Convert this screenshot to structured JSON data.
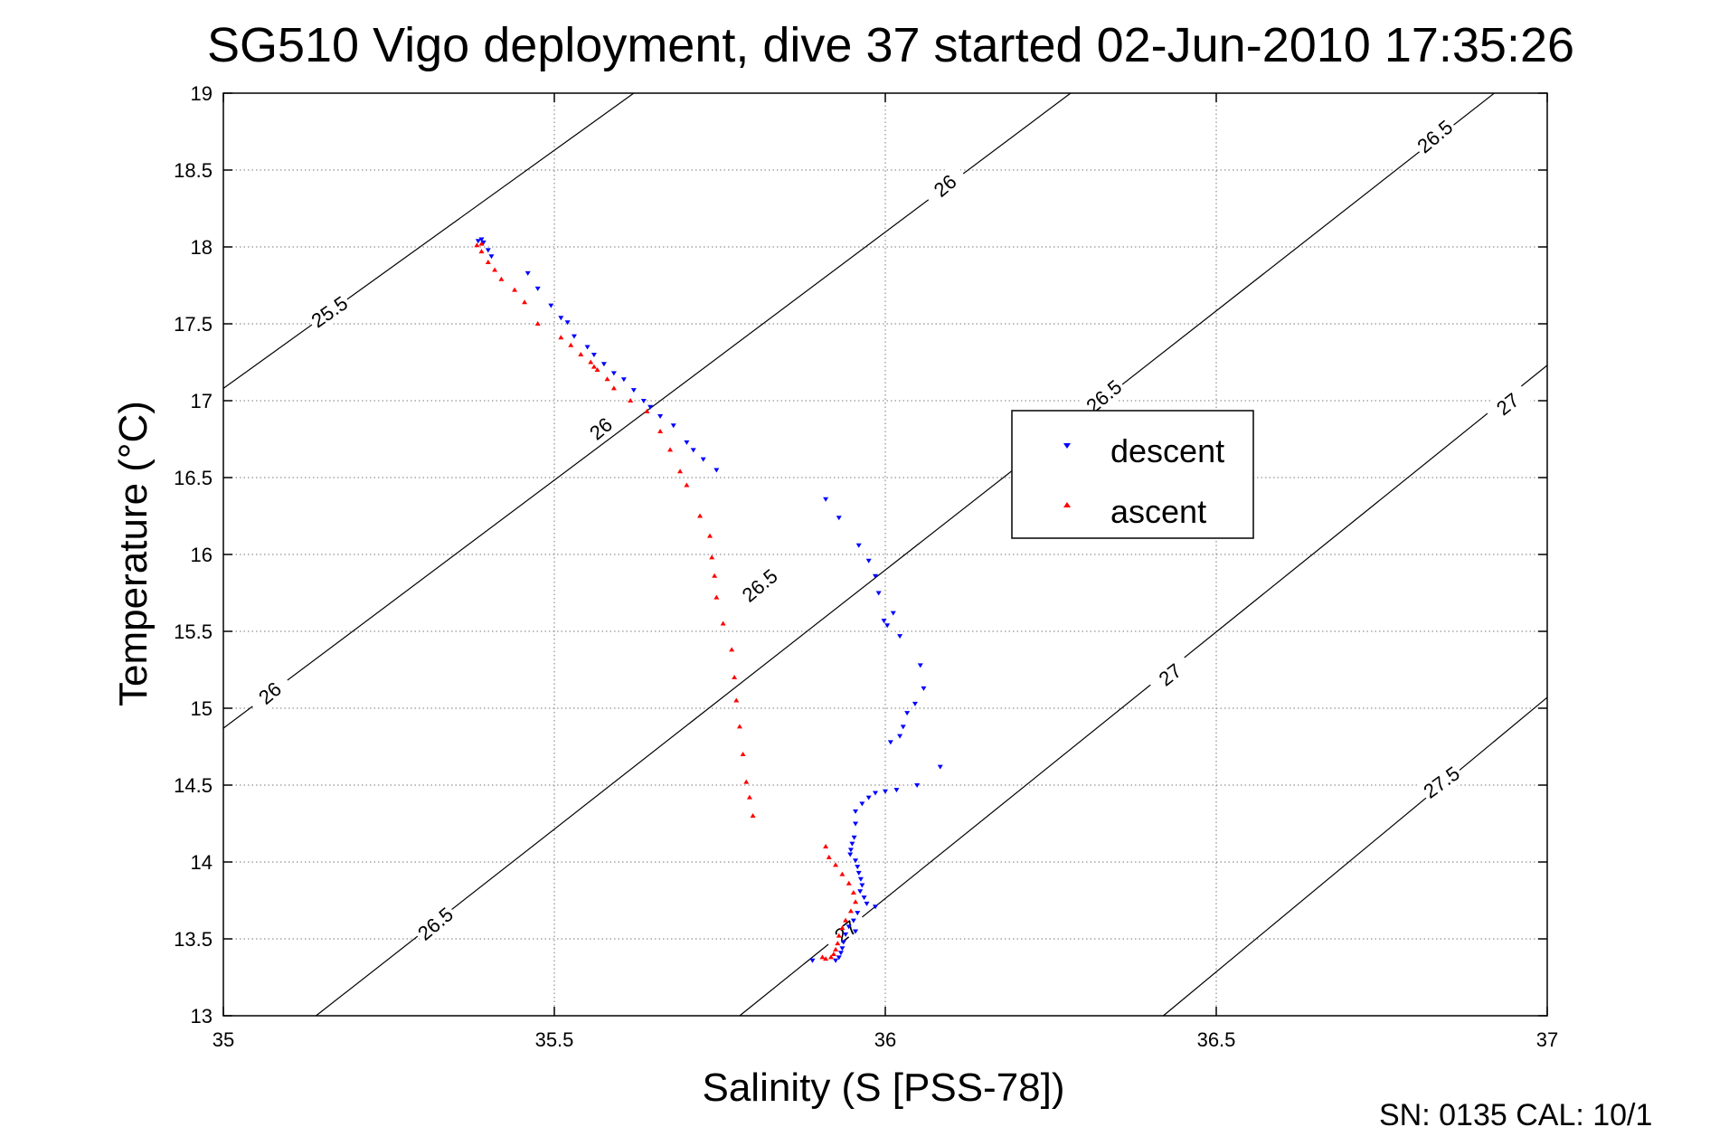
{
  "chart_data": {
    "type": "scatter",
    "title": "SG510 Vigo deployment, dive 37 started 02-Jun-2010 17:35:26",
    "xlabel": "Salinity (S [PSS-78])",
    "ylabel": "Temperature (°C)",
    "footer": "SN: 0135  CAL: 10/1",
    "xlim": [
      35,
      37
    ],
    "ylim": [
      13,
      19
    ],
    "x_ticks": [
      35,
      35.5,
      36,
      36.5,
      37
    ],
    "x_tick_labels": [
      "35",
      "35.5",
      "36",
      "36.5",
      "37"
    ],
    "y_ticks": [
      13,
      13.5,
      14,
      14.5,
      15,
      15.5,
      16,
      16.5,
      17,
      17.5,
      18,
      18.5,
      19
    ],
    "y_tick_labels": [
      "13",
      "13.5",
      "14",
      "14.5",
      "15",
      "15.5",
      "16",
      "16.5",
      "17",
      "17.5",
      "18",
      "18.5",
      "19"
    ],
    "grid": true,
    "legend": {
      "placement": "center-right",
      "entries": [
        "descent",
        "ascent"
      ]
    },
    "colors": {
      "descent": "#0000ff",
      "ascent": "#ff0000"
    },
    "contours": [
      {
        "label": "25.5",
        "points": [
          [
            35.0,
            17.08
          ],
          [
            35.62,
            19.0
          ]
        ],
        "label_pos": [
          35.16,
          17.58
        ],
        "angle": -35
      },
      {
        "label": "26",
        "points": [
          [
            35.0,
            14.87
          ],
          [
            36.28,
            19.0
          ]
        ],
        "label_pos": [
          35.07,
          15.1
        ],
        "angle": -40
      },
      {
        "label": "26",
        "points": [
          [
            35.0,
            14.87
          ],
          [
            36.28,
            19.0
          ]
        ],
        "label_pos": [
          35.57,
          16.82
        ],
        "angle": -40
      },
      {
        "label": "26",
        "points": [
          [
            35.0,
            14.87
          ],
          [
            36.28,
            19.0
          ]
        ],
        "label_pos": [
          36.09,
          18.4
        ],
        "angle": -40
      },
      {
        "label": "26.5",
        "points": [
          [
            35.14,
            13.0
          ],
          [
            36.92,
            19.0
          ]
        ],
        "label_pos": [
          35.32,
          13.6
        ],
        "angle": -40
      },
      {
        "label": "26.5",
        "points": [
          [
            35.14,
            13.0
          ],
          [
            36.92,
            19.0
          ]
        ],
        "label_pos": [
          35.81,
          15.8
        ],
        "angle": -40
      },
      {
        "label": "26.5",
        "points": [
          [
            35.14,
            13.0
          ],
          [
            36.92,
            19.0
          ]
        ],
        "label_pos": [
          36.33,
          17.03
        ],
        "angle": -40
      },
      {
        "label": "26.5",
        "points": [
          [
            35.14,
            13.0
          ],
          [
            36.92,
            19.0
          ]
        ],
        "label_pos": [
          36.83,
          18.72
        ],
        "angle": -40
      },
      {
        "label": "27",
        "points": [
          [
            35.78,
            13.0
          ],
          [
            37.0,
            17.23
          ]
        ],
        "label_pos": [
          35.94,
          13.55
        ],
        "angle": -38
      },
      {
        "label": "27",
        "points": [
          [
            35.78,
            13.0
          ],
          [
            37.0,
            17.23
          ]
        ],
        "label_pos": [
          36.43,
          15.22
        ],
        "angle": -38
      },
      {
        "label": "27",
        "points": [
          [
            35.78,
            13.0
          ],
          [
            37.0,
            17.23
          ]
        ],
        "label_pos": [
          36.94,
          16.98
        ],
        "angle": -38
      },
      {
        "label": "27.5",
        "points": [
          [
            36.42,
            13.0
          ],
          [
            37.0,
            15.07
          ]
        ],
        "label_pos": [
          36.84,
          14.52
        ],
        "angle": -36
      }
    ],
    "series": [
      {
        "name": "descent",
        "points": [
          [
            35.385,
            18.04
          ],
          [
            35.39,
            18.05
          ],
          [
            35.393,
            18.03
          ],
          [
            35.4,
            17.98
          ],
          [
            35.405,
            17.94
          ],
          [
            35.46,
            17.83
          ],
          [
            35.475,
            17.73
          ],
          [
            35.495,
            17.62
          ],
          [
            35.51,
            17.54
          ],
          [
            35.52,
            17.51
          ],
          [
            35.53,
            17.42
          ],
          [
            35.55,
            17.35
          ],
          [
            35.56,
            17.3
          ],
          [
            35.575,
            17.24
          ],
          [
            35.59,
            17.18
          ],
          [
            35.605,
            17.14
          ],
          [
            35.62,
            17.07
          ],
          [
            35.635,
            17.0
          ],
          [
            35.645,
            16.96
          ],
          [
            35.66,
            16.9
          ],
          [
            35.68,
            16.84
          ],
          [
            35.7,
            16.73
          ],
          [
            35.71,
            16.68
          ],
          [
            35.725,
            16.62
          ],
          [
            35.745,
            16.55
          ],
          [
            35.91,
            16.36
          ],
          [
            35.93,
            16.24
          ],
          [
            35.96,
            16.06
          ],
          [
            35.975,
            15.96
          ],
          [
            35.985,
            15.86
          ],
          [
            35.99,
            15.75
          ],
          [
            35.998,
            15.57
          ],
          [
            36.003,
            15.54
          ],
          [
            36.012,
            15.62
          ],
          [
            36.022,
            15.47
          ],
          [
            36.053,
            15.28
          ],
          [
            36.058,
            15.13
          ],
          [
            36.045,
            15.03
          ],
          [
            36.033,
            14.97
          ],
          [
            36.027,
            14.88
          ],
          [
            36.022,
            14.82
          ],
          [
            36.008,
            14.78
          ],
          [
            36.083,
            14.62
          ],
          [
            36.048,
            14.5
          ],
          [
            36.017,
            14.47
          ],
          [
            36.0,
            14.46
          ],
          [
            35.985,
            14.45
          ],
          [
            35.975,
            14.42
          ],
          [
            35.965,
            14.38
          ],
          [
            35.955,
            14.33
          ],
          [
            35.955,
            14.25
          ],
          [
            35.953,
            14.16
          ],
          [
            35.95,
            14.12
          ],
          [
            35.948,
            14.08
          ],
          [
            35.947,
            14.05
          ],
          [
            35.955,
            14.01
          ],
          [
            35.958,
            13.97
          ],
          [
            35.96,
            13.93
          ],
          [
            35.963,
            13.89
          ],
          [
            35.965,
            13.85
          ],
          [
            35.962,
            13.81
          ],
          [
            35.968,
            13.77
          ],
          [
            35.972,
            13.73
          ],
          [
            35.958,
            13.67
          ],
          [
            35.952,
            13.62
          ],
          [
            35.945,
            13.58
          ],
          [
            35.94,
            13.53
          ],
          [
            35.937,
            13.48
          ],
          [
            35.935,
            13.44
          ],
          [
            35.933,
            13.41
          ],
          [
            35.93,
            13.38
          ],
          [
            35.925,
            13.36
          ],
          [
            35.89,
            13.36
          ],
          [
            35.985,
            13.71
          ],
          [
            35.955,
            13.55
          ]
        ]
      },
      {
        "name": "ascent",
        "points": [
          [
            35.383,
            18.01
          ],
          [
            35.39,
            18.02
          ],
          [
            35.39,
            17.97
          ],
          [
            35.4,
            17.9
          ],
          [
            35.41,
            17.85
          ],
          [
            35.42,
            17.79
          ],
          [
            35.44,
            17.72
          ],
          [
            35.455,
            17.64
          ],
          [
            35.475,
            17.5
          ],
          [
            35.51,
            17.41
          ],
          [
            35.525,
            17.36
          ],
          [
            35.54,
            17.3
          ],
          [
            35.555,
            17.25
          ],
          [
            35.56,
            17.22
          ],
          [
            35.565,
            17.2
          ],
          [
            35.58,
            17.14
          ],
          [
            35.59,
            17.08
          ],
          [
            35.615,
            17.0
          ],
          [
            35.64,
            16.93
          ],
          [
            35.66,
            16.8
          ],
          [
            35.675,
            16.68
          ],
          [
            35.69,
            16.54
          ],
          [
            35.7,
            16.45
          ],
          [
            35.72,
            16.25
          ],
          [
            35.735,
            16.12
          ],
          [
            35.738,
            15.98
          ],
          [
            35.742,
            15.86
          ],
          [
            35.745,
            15.72
          ],
          [
            35.755,
            15.55
          ],
          [
            35.768,
            15.38
          ],
          [
            35.772,
            15.2
          ],
          [
            35.775,
            15.05
          ],
          [
            35.78,
            14.88
          ],
          [
            35.785,
            14.7
          ],
          [
            35.79,
            14.52
          ],
          [
            35.795,
            14.42
          ],
          [
            35.8,
            14.3
          ],
          [
            35.91,
            14.1
          ],
          [
            35.915,
            14.03
          ],
          [
            35.925,
            13.98
          ],
          [
            35.935,
            13.92
          ],
          [
            35.945,
            13.86
          ],
          [
            35.952,
            13.8
          ],
          [
            35.955,
            13.74
          ],
          [
            35.948,
            13.68
          ],
          [
            35.94,
            13.62
          ],
          [
            35.935,
            13.57
          ],
          [
            35.93,
            13.52
          ],
          [
            35.928,
            13.47
          ],
          [
            35.925,
            13.43
          ],
          [
            35.922,
            13.4
          ],
          [
            35.918,
            13.38
          ],
          [
            35.91,
            13.37
          ],
          [
            35.905,
            13.38
          ]
        ]
      }
    ]
  }
}
